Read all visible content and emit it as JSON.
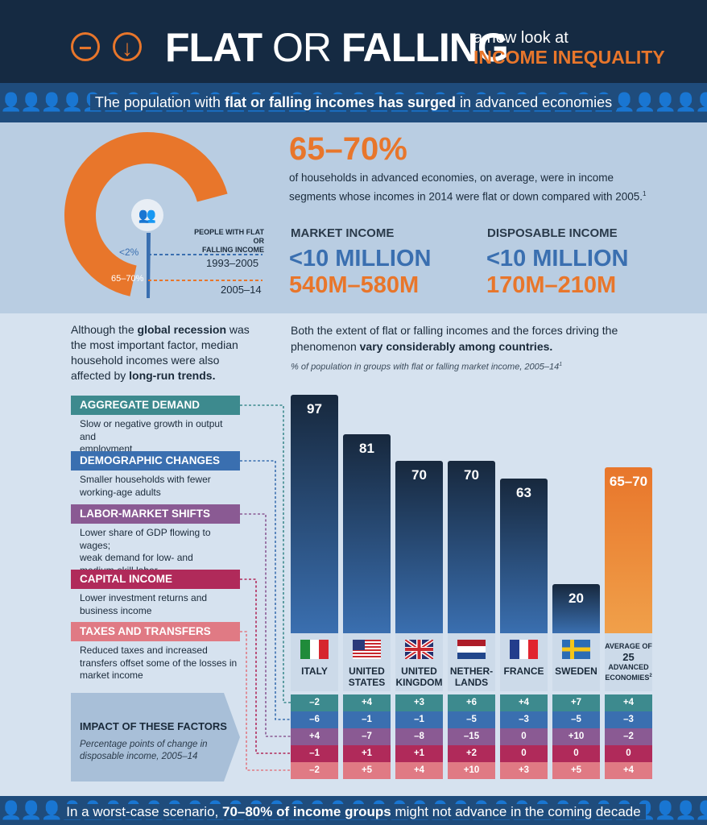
{
  "colors": {
    "header_bg": "#152a42",
    "orange": "#e8762b",
    "blue": "#3a6fb0",
    "aggregate_demand": "#3d8a8e",
    "demographic_changes": "#3a6fb0",
    "labor_market_shifts": "#8a5a93",
    "capital_income": "#b02a5a",
    "taxes_and_transfers": "#e07a84"
  },
  "header": {
    "icons": [
      "minus-circle-icon",
      "down-arrow-circle-icon"
    ],
    "title_flat": "FLAT",
    "title_or": "OR",
    "title_falling": "FALLING",
    "subtitle_line1": "a new look at",
    "subtitle_line2": "INCOME INEQUALITY"
  },
  "banner_top": {
    "text_pre": "The population with ",
    "text_bold": "flat or falling incomes has surged",
    "text_post": " in advanced economies"
  },
  "summary": {
    "headline": "65–70%",
    "text_line1": "of households in advanced economies, on average, were in income",
    "text_line2": "segments whose incomes in 2014 were flat or down compared with 2005.",
    "footnote_mark": "1",
    "donut_label_line1": "PEOPLE WITH FLAT OR",
    "donut_label_line2": "FALLING INCOME",
    "donut_small_pct": "<2%",
    "donut_big_pct": "65–70%",
    "period1": "1993–2005",
    "period2": "2005–14",
    "market_income_label": "MARKET INCOME",
    "market_income_p1": "<10 MILLION",
    "market_income_p2": "540M–580M",
    "disposable_income_label": "DISPOSABLE INCOME",
    "disposable_income_p1": "<10 MILLION",
    "disposable_income_p2": "170M–210M",
    "donut_share_1993_2005": 0.02,
    "donut_share_2005_14": 0.675
  },
  "left_text": {
    "l1_pre": "Although the ",
    "l1_bold": "global recession",
    "l1_post": " was",
    "l2": "the most important factor, median",
    "l3": "household incomes were also",
    "l4_pre": "affected by ",
    "l4_bold": "long-run trends."
  },
  "right_text": {
    "l1": "Both the extent of flat or falling incomes and the forces driving the",
    "l2_pre": "phenomenon ",
    "l2_bold": "vary considerably among countries.",
    "caption": "% of population in groups with flat or falling market income, 2005–14",
    "caption_mark": "1"
  },
  "factors": [
    {
      "title": "AGGREGATE DEMAND",
      "desc": [
        "Slow or negative growth in output and",
        "employment"
      ]
    },
    {
      "title": "DEMOGRAPHIC CHANGES",
      "desc": [
        "Smaller households with fewer",
        "working-age adults"
      ]
    },
    {
      "title": "LABOR-MARKET SHIFTS",
      "desc": [
        "Lower share of GDP flowing to wages;",
        "weak demand for low- and",
        "medium-skill labor"
      ]
    },
    {
      "title": "CAPITAL INCOME",
      "desc": [
        "Lower investment returns and",
        "business income"
      ]
    },
    {
      "title": "TAXES AND TRANSFERS",
      "desc": [
        "Reduced taxes and increased",
        "transfers offset some of the losses in",
        "market income"
      ]
    }
  ],
  "impact_box": {
    "title": "IMPACT OF THESE FACTORS",
    "sub1": "Percentage points of change in",
    "sub2": "disposable income, 2005–14"
  },
  "chart_data": {
    "type": "bar",
    "title": "% of population in groups with flat or falling market income, 2005–14",
    "categories": [
      "ITALY",
      "UNITED STATES",
      "UNITED KINGDOM",
      "NETHER-LANDS",
      "FRANCE",
      "SWEDEN",
      "AVERAGE OF 25 ADVANCED ECONOMIES"
    ],
    "category_lines": [
      [
        "ITALY"
      ],
      [
        "UNITED",
        "STATES"
      ],
      [
        "UNITED",
        "KINGDOM"
      ],
      [
        "NETHER-",
        "LANDS"
      ],
      [
        "FRANCE"
      ],
      [
        "SWEDEN"
      ],
      [
        "AVERAGE OF",
        "25",
        "ADVANCED",
        "ECONOMIES"
      ]
    ],
    "average_mark": "2",
    "flags": [
      "italy-flag-icon",
      "us-flag-icon",
      "uk-flag-icon",
      "netherlands-flag-icon",
      "france-flag-icon",
      "sweden-flag-icon",
      ""
    ],
    "values": [
      97,
      81,
      70,
      70,
      63,
      20,
      67.5
    ],
    "value_labels": [
      "97",
      "81",
      "70",
      "70",
      "63",
      "20",
      "65–70"
    ],
    "ylim": [
      0,
      100
    ],
    "impact": {
      "rows": [
        "AGGREGATE DEMAND",
        "DEMOGRAPHIC CHANGES",
        "LABOR-MARKET SHIFTS",
        "CAPITAL INCOME",
        "TAXES AND TRANSFERS"
      ],
      "values": [
        [
          "–2",
          "+4",
          "+3",
          "+6",
          "+4",
          "+7",
          "+4"
        ],
        [
          "–6",
          "–1",
          "–1",
          "–5",
          "–3",
          "–5",
          "–3"
        ],
        [
          "+4",
          "–7",
          "–8",
          "–15",
          "0",
          "+10",
          "–2"
        ],
        [
          "–1",
          "+1",
          "+1",
          "+2",
          "0",
          "0",
          "0"
        ],
        [
          "–2",
          "+5",
          "+4",
          "+10",
          "+3",
          "+5",
          "+4"
        ]
      ]
    }
  },
  "banner_bottom": {
    "text_pre": "In a worst-case scenario, ",
    "text_bold": "70–80% of income groups",
    "text_post": " might not advance in the coming decade"
  }
}
